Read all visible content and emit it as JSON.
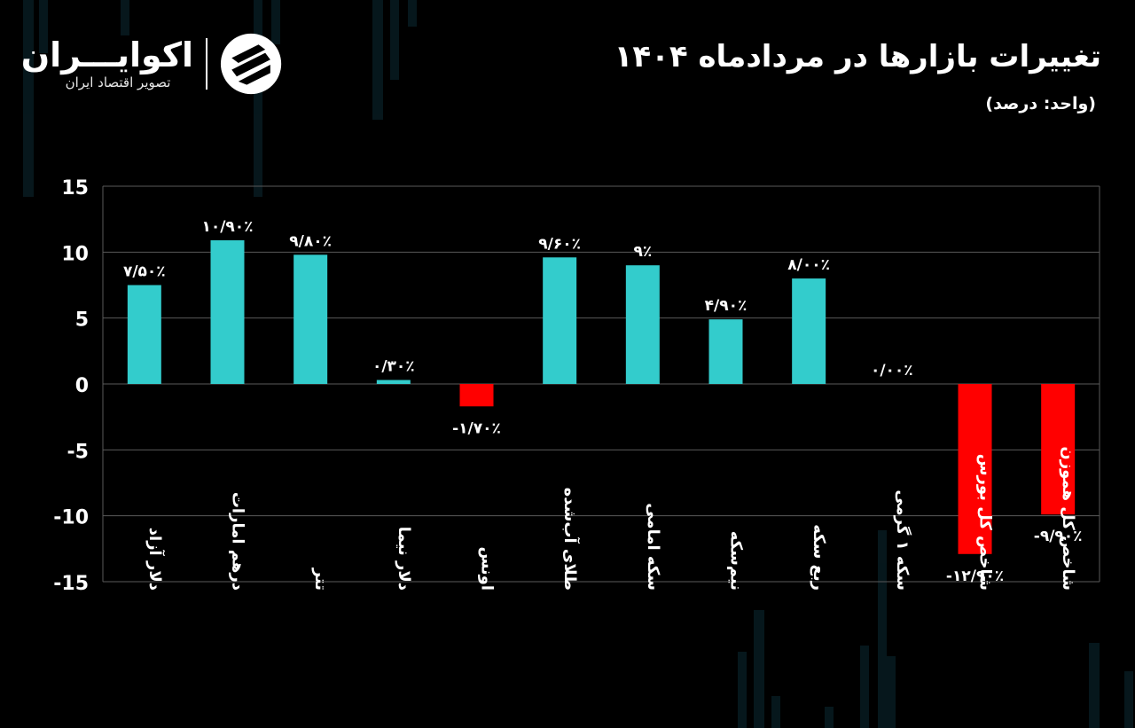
{
  "header": {
    "title": "تغییرات بازارها در مردادماه ۱۴۰۴",
    "unit": "(واحد: درصد)"
  },
  "logo": {
    "name": "اکوایـــران",
    "tagline": "تصویر اقتصاد ایران"
  },
  "colors": {
    "background": "#000000",
    "positive": "#33CCCC",
    "negative": "#FF0000",
    "gridline": "#5a5a5a",
    "text": "#ffffff"
  },
  "chart_data": {
    "type": "bar",
    "title": "تغییرات بازارها در مردادماه ۱۴۰۴",
    "ylabel": "",
    "xlabel": "",
    "ylim": [
      -15,
      15
    ],
    "yticks": [
      15,
      10,
      5,
      0,
      -5,
      -10,
      -15
    ],
    "ytick_labels": [
      "15",
      "10",
      "5",
      "0",
      "-5",
      "-10",
      "-15"
    ],
    "grid": true,
    "categories": [
      "دلار آزاد",
      "درهم امارات",
      "تتر",
      "دلار نیما",
      "اونس",
      "طلای آب‌شده",
      "سکه امامی",
      "نیم‌سکه",
      "ربع سکه",
      "سکه ۱ گرمی",
      "شاخص کل بورس",
      "شاخص کل هموزن"
    ],
    "values": [
      7.5,
      10.9,
      9.8,
      0.3,
      -1.7,
      9.6,
      9,
      4.9,
      8,
      0,
      -12.9,
      -9.9
    ],
    "data_labels": [
      "۷/۵۰٪",
      "۱۰/۹۰٪",
      "۹/۸۰٪",
      "۰/۳۰٪",
      "-۱/۷۰٪",
      "۹/۶۰٪",
      "۹٪",
      "۴/۹۰٪",
      "۸/۰۰٪",
      "۰/۰۰٪",
      "-۱۲/۹۰٪",
      "-۹/۹۰٪"
    ]
  }
}
